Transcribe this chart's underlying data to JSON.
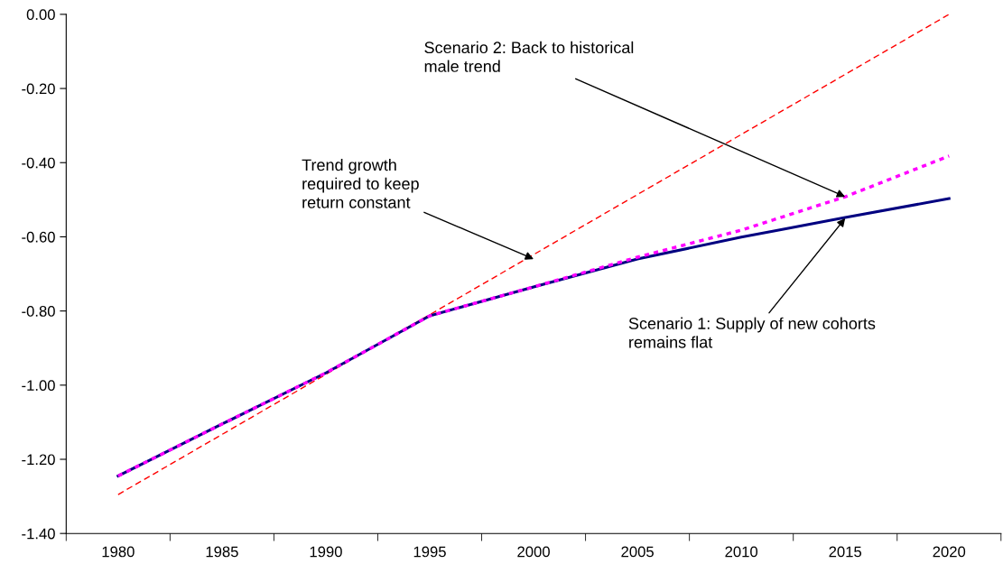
{
  "chart_data": {
    "type": "line",
    "categories": [
      "1980",
      "1985",
      "1990",
      "1995",
      "2000",
      "2005",
      "2010",
      "2015",
      "2020"
    ],
    "series": [
      {
        "color": "#ff0000",
        "line_style": "dashed",
        "values": [
          -1.295,
          -1.133,
          -0.971,
          -0.81,
          -0.648,
          -0.486,
          -0.324,
          -0.162,
          0.0
        ]
      },
      {
        "color": "#000080",
        "line_style": "solid",
        "values": [
          -1.245,
          -1.105,
          -0.967,
          -0.813,
          -0.735,
          -0.66,
          -0.601,
          -0.548,
          -0.497
        ]
      },
      {
        "color": "#ff00ff",
        "line_style": "dotted",
        "values": [
          -1.245,
          -1.105,
          -0.967,
          -0.813,
          -0.735,
          -0.655,
          -0.582,
          -0.492,
          -0.382
        ]
      }
    ],
    "ylim": [
      -1.4,
      0.0
    ],
    "yticks": [
      {
        "value": -1.4,
        "label": "-1.40"
      },
      {
        "value": -1.2,
        "label": "-1.20"
      },
      {
        "value": -1.0,
        "label": "-1.00"
      },
      {
        "value": -0.8,
        "label": "-0.80"
      },
      {
        "value": -0.6,
        "label": "-0.60"
      },
      {
        "value": -0.4,
        "label": "-0.40"
      },
      {
        "value": -0.2,
        "label": "-0.20"
      },
      {
        "value": 0.0,
        "label": "0.00"
      }
    ],
    "grid": false,
    "legend": false,
    "marker": "none",
    "annotations": [
      {
        "text": "Scenario 2: Back to historical\nmale trend",
        "x": "2015",
        "y": -0.492
      },
      {
        "text": "Trend growth\nrequired to keep\nreturn constant",
        "x": "2000",
        "y": -0.66
      },
      {
        "text": "Scenario 1: Supply of new cohorts\nremains flat",
        "x": "2015",
        "y": -0.55
      }
    ]
  }
}
